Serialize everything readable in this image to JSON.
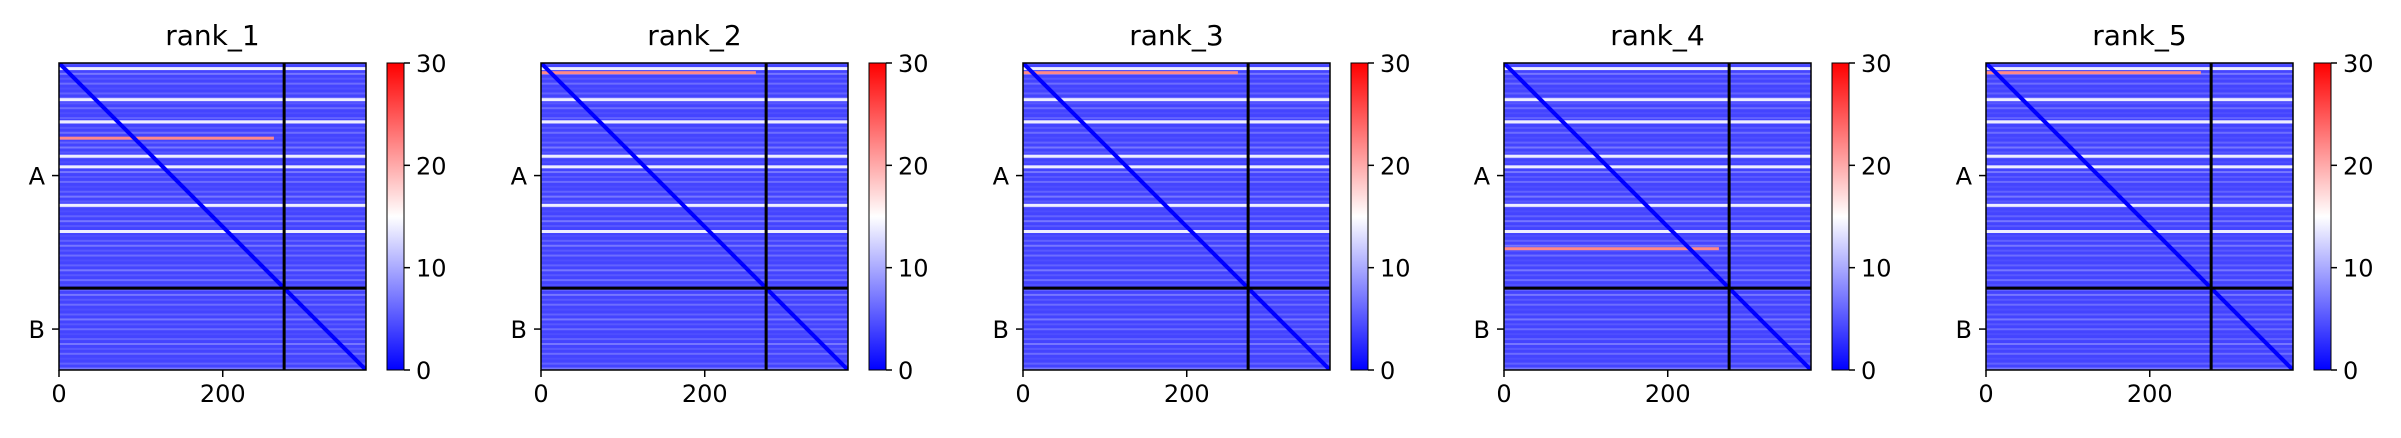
{
  "chart_data": [
    {
      "type": "heatmap",
      "title": "rank_1",
      "xticks": [
        0,
        200
      ],
      "ytick_labels": [
        "A",
        "B"
      ],
      "chain_boundary": 275,
      "n_residues": 375,
      "colorbar_ticks": [
        0,
        10,
        20,
        30
      ],
      "vmin": 0,
      "vmax": 30,
      "colormap": "bwr",
      "bright_rows": [
        5,
        43,
        70,
        112,
        125,
        172,
        204
      ],
      "hot_row": 90
    },
    {
      "type": "heatmap",
      "title": "rank_2",
      "xticks": [
        0,
        200
      ],
      "ytick_labels": [
        "A",
        "B"
      ],
      "chain_boundary": 275,
      "n_residues": 375,
      "colorbar_ticks": [
        0,
        10,
        20,
        30
      ],
      "vmin": 0,
      "vmax": 30,
      "colormap": "bwr",
      "bright_rows": [
        5,
        43,
        70,
        112,
        125,
        172,
        204
      ],
      "hot_row": 10
    },
    {
      "type": "heatmap",
      "title": "rank_3",
      "xticks": [
        0,
        200
      ],
      "ytick_labels": [
        "A",
        "B"
      ],
      "chain_boundary": 275,
      "n_residues": 375,
      "colorbar_ticks": [
        0,
        10,
        20,
        30
      ],
      "vmin": 0,
      "vmax": 30,
      "colormap": "bwr",
      "bright_rows": [
        5,
        43,
        70,
        112,
        125,
        172,
        204
      ],
      "hot_row": 10
    },
    {
      "type": "heatmap",
      "title": "rank_4",
      "xticks": [
        0,
        200
      ],
      "ytick_labels": [
        "A",
        "B"
      ],
      "chain_boundary": 275,
      "n_residues": 375,
      "colorbar_ticks": [
        0,
        10,
        20,
        30
      ],
      "vmin": 0,
      "vmax": 30,
      "colormap": "bwr",
      "bright_rows": [
        5,
        43,
        70,
        112,
        125,
        172,
        204
      ],
      "hot_row": 225
    },
    {
      "type": "heatmap",
      "title": "rank_5",
      "xticks": [
        0,
        200
      ],
      "ytick_labels": [
        "A",
        "B"
      ],
      "chain_boundary": 275,
      "n_residues": 375,
      "colorbar_ticks": [
        0,
        10,
        20,
        30
      ],
      "vmin": 0,
      "vmax": 30,
      "colormap": "bwr",
      "bright_rows": [
        5,
        43,
        70,
        112,
        125,
        172,
        204
      ],
      "hot_row": 10
    }
  ]
}
